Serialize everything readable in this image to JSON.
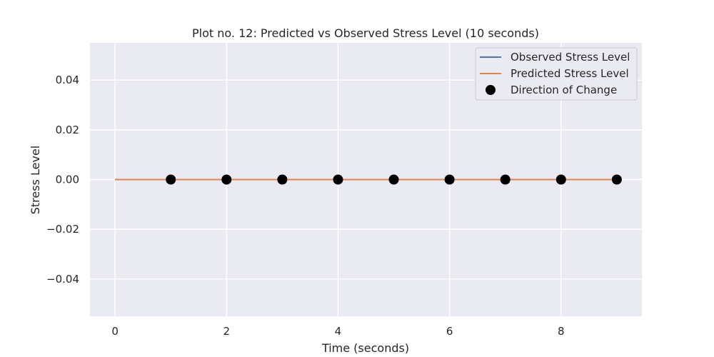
{
  "chart_data": {
    "type": "line",
    "title": "Plot no. 12: Predicted vs Observed Stress Level (10 seconds)",
    "xlabel": "Time (seconds)",
    "ylabel": "Stress Level",
    "xlim": [
      -0.45,
      9.45
    ],
    "ylim": [
      -0.055,
      0.055
    ],
    "xticks": [
      0,
      2,
      4,
      6,
      8
    ],
    "xtick_labels": [
      "0",
      "2",
      "4",
      "6",
      "8"
    ],
    "yticks": [
      0.04,
      0.02,
      0.0,
      -0.02,
      -0.04
    ],
    "ytick_labels": [
      "0.04",
      "0.02",
      "0.00",
      "−0.02",
      "−0.04"
    ],
    "grid": true,
    "legend_position": "top-right",
    "x": [
      0,
      1,
      2,
      3,
      4,
      5,
      6,
      7,
      8,
      9
    ],
    "series": [
      {
        "name": "Observed Stress Level",
        "kind": "line",
        "color": "#4c72b0",
        "values": [
          0,
          0,
          0,
          0,
          0,
          0,
          0,
          0,
          0,
          0
        ]
      },
      {
        "name": "Predicted Stress Level",
        "kind": "line",
        "color": "#dd8452",
        "values": [
          0,
          0,
          0,
          0,
          0,
          0,
          0,
          0,
          0,
          0
        ]
      },
      {
        "name": "Direction of Change",
        "kind": "scatter",
        "color": "#000000",
        "x": [
          1,
          2,
          3,
          4,
          5,
          6,
          7,
          8,
          9
        ],
        "values": [
          0,
          0,
          0,
          0,
          0,
          0,
          0,
          0,
          0
        ]
      }
    ],
    "colors": {
      "axes_background": "#eaeaf2",
      "grid": "#ffffff",
      "text": "#262626"
    }
  }
}
